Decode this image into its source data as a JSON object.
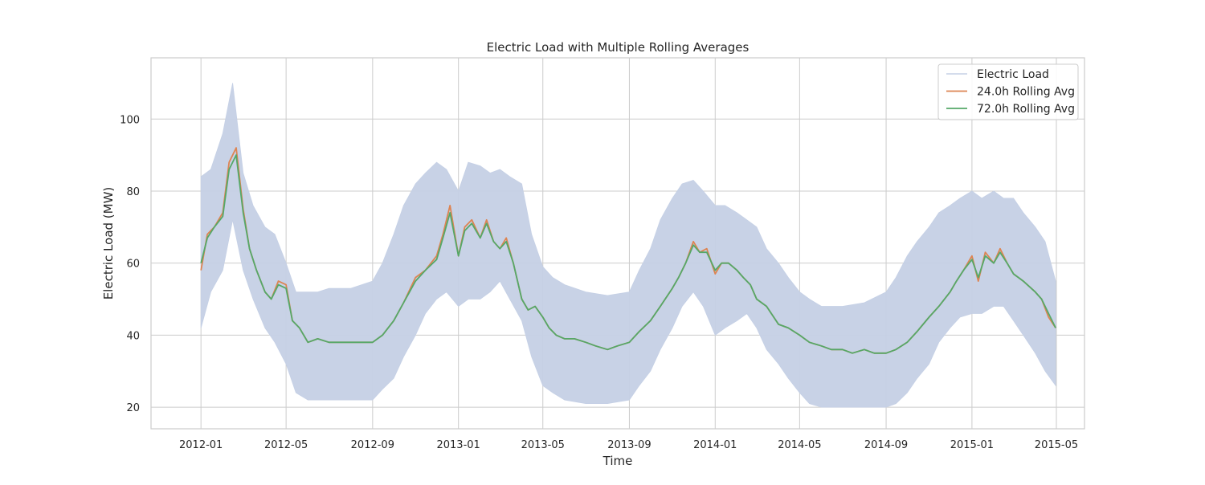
{
  "chart_data": {
    "type": "line",
    "title": "Electric Load with Multiple Rolling Averages",
    "xlabel": "Time",
    "ylabel": "Electric Load (MW)",
    "x_tick_labels": [
      "2012-01",
      "2012-05",
      "2012-09",
      "2013-01",
      "2013-05",
      "2013-09",
      "2014-01",
      "2014-05",
      "2014-09",
      "2015-01",
      "2015-05"
    ],
    "y_ticks": [
      20,
      40,
      60,
      80,
      100
    ],
    "xlim": [
      "2011-10-22",
      "2015-06-10"
    ],
    "ylim": [
      14,
      117
    ],
    "grid": true,
    "legend_position": "top-right",
    "series": [
      {
        "name": "Electric Load",
        "kind": "band",
        "color": "#c5d0e5",
        "x": [
          "2012-01-01",
          "2012-01-15",
          "2012-02-01",
          "2012-02-15",
          "2012-03-01",
          "2012-03-15",
          "2012-04-01",
          "2012-04-15",
          "2012-05-01",
          "2012-05-15",
          "2012-06-01",
          "2012-06-15",
          "2012-07-01",
          "2012-08-01",
          "2012-09-01",
          "2012-09-15",
          "2012-10-01",
          "2012-10-15",
          "2012-11-01",
          "2012-11-15",
          "2012-12-01",
          "2012-12-15",
          "2013-01-01",
          "2013-01-15",
          "2013-02-01",
          "2013-02-15",
          "2013-03-01",
          "2013-03-15",
          "2013-04-01",
          "2013-04-15",
          "2013-05-01",
          "2013-05-15",
          "2013-06-01",
          "2013-07-01",
          "2013-08-01",
          "2013-09-01",
          "2013-09-15",
          "2013-10-01",
          "2013-10-15",
          "2013-11-01",
          "2013-11-15",
          "2013-12-01",
          "2013-12-15",
          "2014-01-01",
          "2014-01-15",
          "2014-02-01",
          "2014-02-15",
          "2014-03-01",
          "2014-03-15",
          "2014-04-01",
          "2014-04-15",
          "2014-05-01",
          "2014-05-15",
          "2014-06-01",
          "2014-07-01",
          "2014-08-01",
          "2014-09-01",
          "2014-09-15",
          "2014-10-01",
          "2014-10-15",
          "2014-11-01",
          "2014-11-15",
          "2014-12-01",
          "2014-12-15",
          "2015-01-01",
          "2015-01-15",
          "2015-02-01",
          "2015-02-15",
          "2015-03-01",
          "2015-03-15",
          "2015-04-01",
          "2015-04-15",
          "2015-04-30"
        ],
        "upper": [
          84,
          86,
          96,
          110,
          85,
          76,
          70,
          68,
          60,
          52,
          52,
          52,
          53,
          53,
          55,
          60,
          68,
          76,
          82,
          85,
          88,
          86,
          80,
          88,
          87,
          85,
          86,
          84,
          82,
          68,
          59,
          56,
          54,
          52,
          51,
          52,
          58,
          64,
          72,
          78,
          82,
          83,
          80,
          76,
          76,
          74,
          72,
          70,
          64,
          60,
          56,
          52,
          50,
          48,
          48,
          49,
          52,
          56,
          62,
          66,
          70,
          74,
          76,
          78,
          80,
          78,
          80,
          78,
          78,
          74,
          70,
          66,
          55
        ],
        "lower": [
          42,
          52,
          58,
          72,
          58,
          50,
          42,
          38,
          32,
          24,
          22,
          22,
          22,
          22,
          22,
          25,
          28,
          34,
          40,
          46,
          50,
          52,
          48,
          50,
          50,
          52,
          55,
          50,
          44,
          34,
          26,
          24,
          22,
          21,
          21,
          22,
          26,
          30,
          36,
          42,
          48,
          52,
          48,
          40,
          42,
          44,
          46,
          42,
          36,
          32,
          28,
          24,
          21,
          20,
          20,
          20,
          20,
          21,
          24,
          28,
          32,
          38,
          42,
          45,
          46,
          46,
          48,
          48,
          44,
          40,
          35,
          30,
          26
        ]
      },
      {
        "name": "24.0h Rolling Avg",
        "color": "#dd8452",
        "x": [
          "2012-01-01",
          "2012-01-10",
          "2012-01-20",
          "2012-02-01",
          "2012-02-10",
          "2012-02-20",
          "2012-03-01",
          "2012-03-10",
          "2012-03-20",
          "2012-04-01",
          "2012-04-10",
          "2012-04-20",
          "2012-05-01",
          "2012-05-10",
          "2012-05-20",
          "2012-06-01",
          "2012-06-15",
          "2012-07-01",
          "2012-07-15",
          "2012-08-01",
          "2012-08-15",
          "2012-09-01",
          "2012-09-15",
          "2012-10-01",
          "2012-10-15",
          "2012-11-01",
          "2012-11-15",
          "2012-12-01",
          "2012-12-10",
          "2012-12-20",
          "2013-01-01",
          "2013-01-10",
          "2013-01-20",
          "2013-02-01",
          "2013-02-10",
          "2013-02-20",
          "2013-03-01",
          "2013-03-10",
          "2013-03-20",
          "2013-04-01",
          "2013-04-10",
          "2013-04-20",
          "2013-05-01",
          "2013-05-10",
          "2013-05-20",
          "2013-06-01",
          "2013-06-15",
          "2013-07-01",
          "2013-07-15",
          "2013-08-01",
          "2013-08-15",
          "2013-09-01",
          "2013-09-15",
          "2013-10-01",
          "2013-10-15",
          "2013-11-01",
          "2013-11-10",
          "2013-11-20",
          "2013-12-01",
          "2013-12-10",
          "2013-12-20",
          "2014-01-01",
          "2014-01-10",
          "2014-01-20",
          "2014-02-01",
          "2014-02-10",
          "2014-02-20",
          "2014-03-01",
          "2014-03-15",
          "2014-04-01",
          "2014-04-15",
          "2014-05-01",
          "2014-05-15",
          "2014-06-01",
          "2014-06-15",
          "2014-07-01",
          "2014-07-15",
          "2014-08-01",
          "2014-08-15",
          "2014-09-01",
          "2014-09-15",
          "2014-10-01",
          "2014-10-15",
          "2014-11-01",
          "2014-11-15",
          "2014-12-01",
          "2014-12-10",
          "2014-12-20",
          "2015-01-01",
          "2015-01-10",
          "2015-01-20",
          "2015-02-01",
          "2015-02-10",
          "2015-02-20",
          "2015-03-01",
          "2015-03-15",
          "2015-04-01",
          "2015-04-10",
          "2015-04-20",
          "2015-04-30"
        ],
        "y": [
          58,
          68,
          70,
          74,
          88,
          92,
          75,
          64,
          58,
          52,
          50,
          55,
          54,
          44,
          42,
          38,
          39,
          38,
          38,
          38,
          38,
          38,
          40,
          44,
          49,
          56,
          58,
          62,
          68,
          76,
          62,
          70,
          72,
          67,
          72,
          66,
          64,
          67,
          60,
          50,
          47,
          48,
          45,
          42,
          40,
          39,
          39,
          38,
          37,
          36,
          37,
          38,
          41,
          44,
          48,
          53,
          56,
          60,
          66,
          63,
          64,
          57,
          60,
          60,
          58,
          56,
          54,
          50,
          48,
          43,
          42,
          40,
          38,
          37,
          36,
          36,
          35,
          36,
          35,
          35,
          36,
          38,
          41,
          45,
          48,
          52,
          55,
          58,
          62,
          55,
          63,
          60,
          64,
          60,
          57,
          55,
          52,
          50,
          45,
          42
        ]
      },
      {
        "name": "72.0h Rolling Avg",
        "color": "#55a868",
        "x": [
          "2012-01-01",
          "2012-01-10",
          "2012-01-20",
          "2012-02-01",
          "2012-02-10",
          "2012-02-20",
          "2012-03-01",
          "2012-03-10",
          "2012-03-20",
          "2012-04-01",
          "2012-04-10",
          "2012-04-20",
          "2012-05-01",
          "2012-05-10",
          "2012-05-20",
          "2012-06-01",
          "2012-06-15",
          "2012-07-01",
          "2012-07-15",
          "2012-08-01",
          "2012-08-15",
          "2012-09-01",
          "2012-09-15",
          "2012-10-01",
          "2012-10-15",
          "2012-11-01",
          "2012-11-15",
          "2012-12-01",
          "2012-12-10",
          "2012-12-20",
          "2013-01-01",
          "2013-01-10",
          "2013-01-20",
          "2013-02-01",
          "2013-02-10",
          "2013-02-20",
          "2013-03-01",
          "2013-03-10",
          "2013-03-20",
          "2013-04-01",
          "2013-04-10",
          "2013-04-20",
          "2013-05-01",
          "2013-05-10",
          "2013-05-20",
          "2013-06-01",
          "2013-06-15",
          "2013-07-01",
          "2013-07-15",
          "2013-08-01",
          "2013-08-15",
          "2013-09-01",
          "2013-09-15",
          "2013-10-01",
          "2013-10-15",
          "2013-11-01",
          "2013-11-10",
          "2013-11-20",
          "2013-12-01",
          "2013-12-10",
          "2013-12-20",
          "2014-01-01",
          "2014-01-10",
          "2014-01-20",
          "2014-02-01",
          "2014-02-10",
          "2014-02-20",
          "2014-03-01",
          "2014-03-15",
          "2014-04-01",
          "2014-04-15",
          "2014-05-01",
          "2014-05-15",
          "2014-06-01",
          "2014-06-15",
          "2014-07-01",
          "2014-07-15",
          "2014-08-01",
          "2014-08-15",
          "2014-09-01",
          "2014-09-15",
          "2014-10-01",
          "2014-10-15",
          "2014-11-01",
          "2014-11-15",
          "2014-12-01",
          "2014-12-10",
          "2014-12-20",
          "2015-01-01",
          "2015-01-10",
          "2015-01-20",
          "2015-02-01",
          "2015-02-10",
          "2015-02-20",
          "2015-03-01",
          "2015-03-15",
          "2015-04-01",
          "2015-04-10",
          "2015-04-20",
          "2015-04-30"
        ],
        "y": [
          60,
          67,
          70,
          73,
          86,
          90,
          74,
          64,
          58,
          52,
          50,
          54,
          53,
          44,
          42,
          38,
          39,
          38,
          38,
          38,
          38,
          38,
          40,
          44,
          49,
          55,
          58,
          61,
          67,
          74,
          62,
          69,
          71,
          67,
          71,
          66,
          64,
          66,
          60,
          50,
          47,
          48,
          45,
          42,
          40,
          39,
          39,
          38,
          37,
          36,
          37,
          38,
          41,
          44,
          48,
          53,
          56,
          60,
          65,
          63,
          63,
          58,
          60,
          60,
          58,
          56,
          54,
          50,
          48,
          43,
          42,
          40,
          38,
          37,
          36,
          36,
          35,
          36,
          35,
          35,
          36,
          38,
          41,
          45,
          48,
          52,
          55,
          58,
          61,
          56,
          62,
          60,
          63,
          60,
          57,
          55,
          52,
          50,
          46,
          42
        ]
      }
    ]
  }
}
